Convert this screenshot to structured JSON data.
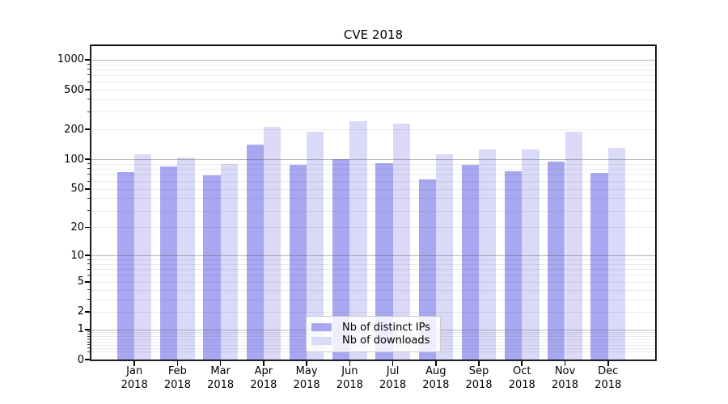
{
  "chart_data": {
    "type": "bar",
    "title": "CVE 2018",
    "yscale": "log1p",
    "grid": true,
    "categories": [
      "Jan",
      "Feb",
      "Mar",
      "Apr",
      "May",
      "Jun",
      "Jul",
      "Aug",
      "Sep",
      "Oct",
      "Nov",
      "Dec"
    ],
    "x_tick_year": "2018",
    "series": [
      {
        "name": "Nb of distinct IPs",
        "color": "#a7a7f2",
        "values": [
          74,
          85,
          69,
          140,
          88,
          100,
          91,
          62,
          87,
          75,
          95,
          73
        ]
      },
      {
        "name": "Nb of downloads",
        "color": "#dadaf8",
        "values": [
          112,
          103,
          89,
          210,
          188,
          240,
          227,
          113,
          126,
          126,
          190,
          131
        ]
      }
    ],
    "y_ticks": [
      0,
      1,
      2,
      5,
      10,
      20,
      50,
      100,
      200,
      500,
      1000
    ],
    "major_gridlines_at": [
      1,
      10,
      100,
      1000
    ],
    "ylim": [
      0,
      1343
    ],
    "legend_position": "lower center"
  },
  "colors": {
    "background": "#ffffff",
    "axis": "#000000",
    "text": "#000000",
    "major_grid": "rgba(96,96,96,0.45)",
    "minor_grid": "rgba(60,60,60,0.10)"
  }
}
